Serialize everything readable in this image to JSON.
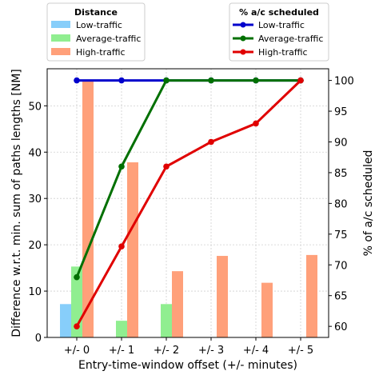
{
  "chart_data": {
    "type": "bar+line",
    "xlabel": "Entry-time-window offset (+/- minutes)",
    "categories": [
      "+/- 0",
      "+/- 1",
      "+/- 2",
      "+/- 3",
      "+/- 4",
      "+/- 5"
    ],
    "left_axis": {
      "label": "Difference w.r.t. min. sum of paths lengths [NM]",
      "ylim": [
        0,
        58
      ],
      "ticks": [
        0,
        10,
        20,
        30,
        40,
        50
      ]
    },
    "right_axis": {
      "label": "% of a/c scheduled",
      "ylim": [
        58.2,
        101.9
      ],
      "ticks": [
        60,
        65,
        70,
        75,
        80,
        85,
        90,
        95,
        100
      ]
    },
    "grid": true,
    "bar_legend": {
      "title": "Distance",
      "placement": "top-left"
    },
    "line_legend": {
      "title": "% a/c scheduled",
      "placement": "top-right"
    },
    "bar_series": [
      {
        "name": "Low-traffic",
        "color": "#87cefa",
        "values": [
          7.2,
          0,
          0,
          0,
          0,
          0
        ]
      },
      {
        "name": "Average-traffic",
        "color": "#90ee90",
        "values": [
          15.3,
          3.6,
          7.2,
          0,
          0,
          0
        ]
      },
      {
        "name": "High-traffic",
        "color": "#ffa07a",
        "values": [
          55.5,
          37.8,
          14.3,
          17.6,
          11.8,
          17.8
        ]
      }
    ],
    "line_series": [
      {
        "name": "Low-traffic",
        "color": "#0000cc",
        "values": [
          100,
          100,
          100,
          100,
          100,
          100
        ]
      },
      {
        "name": "Average-traffic",
        "color": "#007000",
        "values": [
          68,
          86,
          100,
          100,
          100,
          100
        ]
      },
      {
        "name": "High-traffic",
        "color": "#e00000",
        "values": [
          60,
          73,
          86,
          90,
          93,
          100
        ]
      }
    ]
  }
}
